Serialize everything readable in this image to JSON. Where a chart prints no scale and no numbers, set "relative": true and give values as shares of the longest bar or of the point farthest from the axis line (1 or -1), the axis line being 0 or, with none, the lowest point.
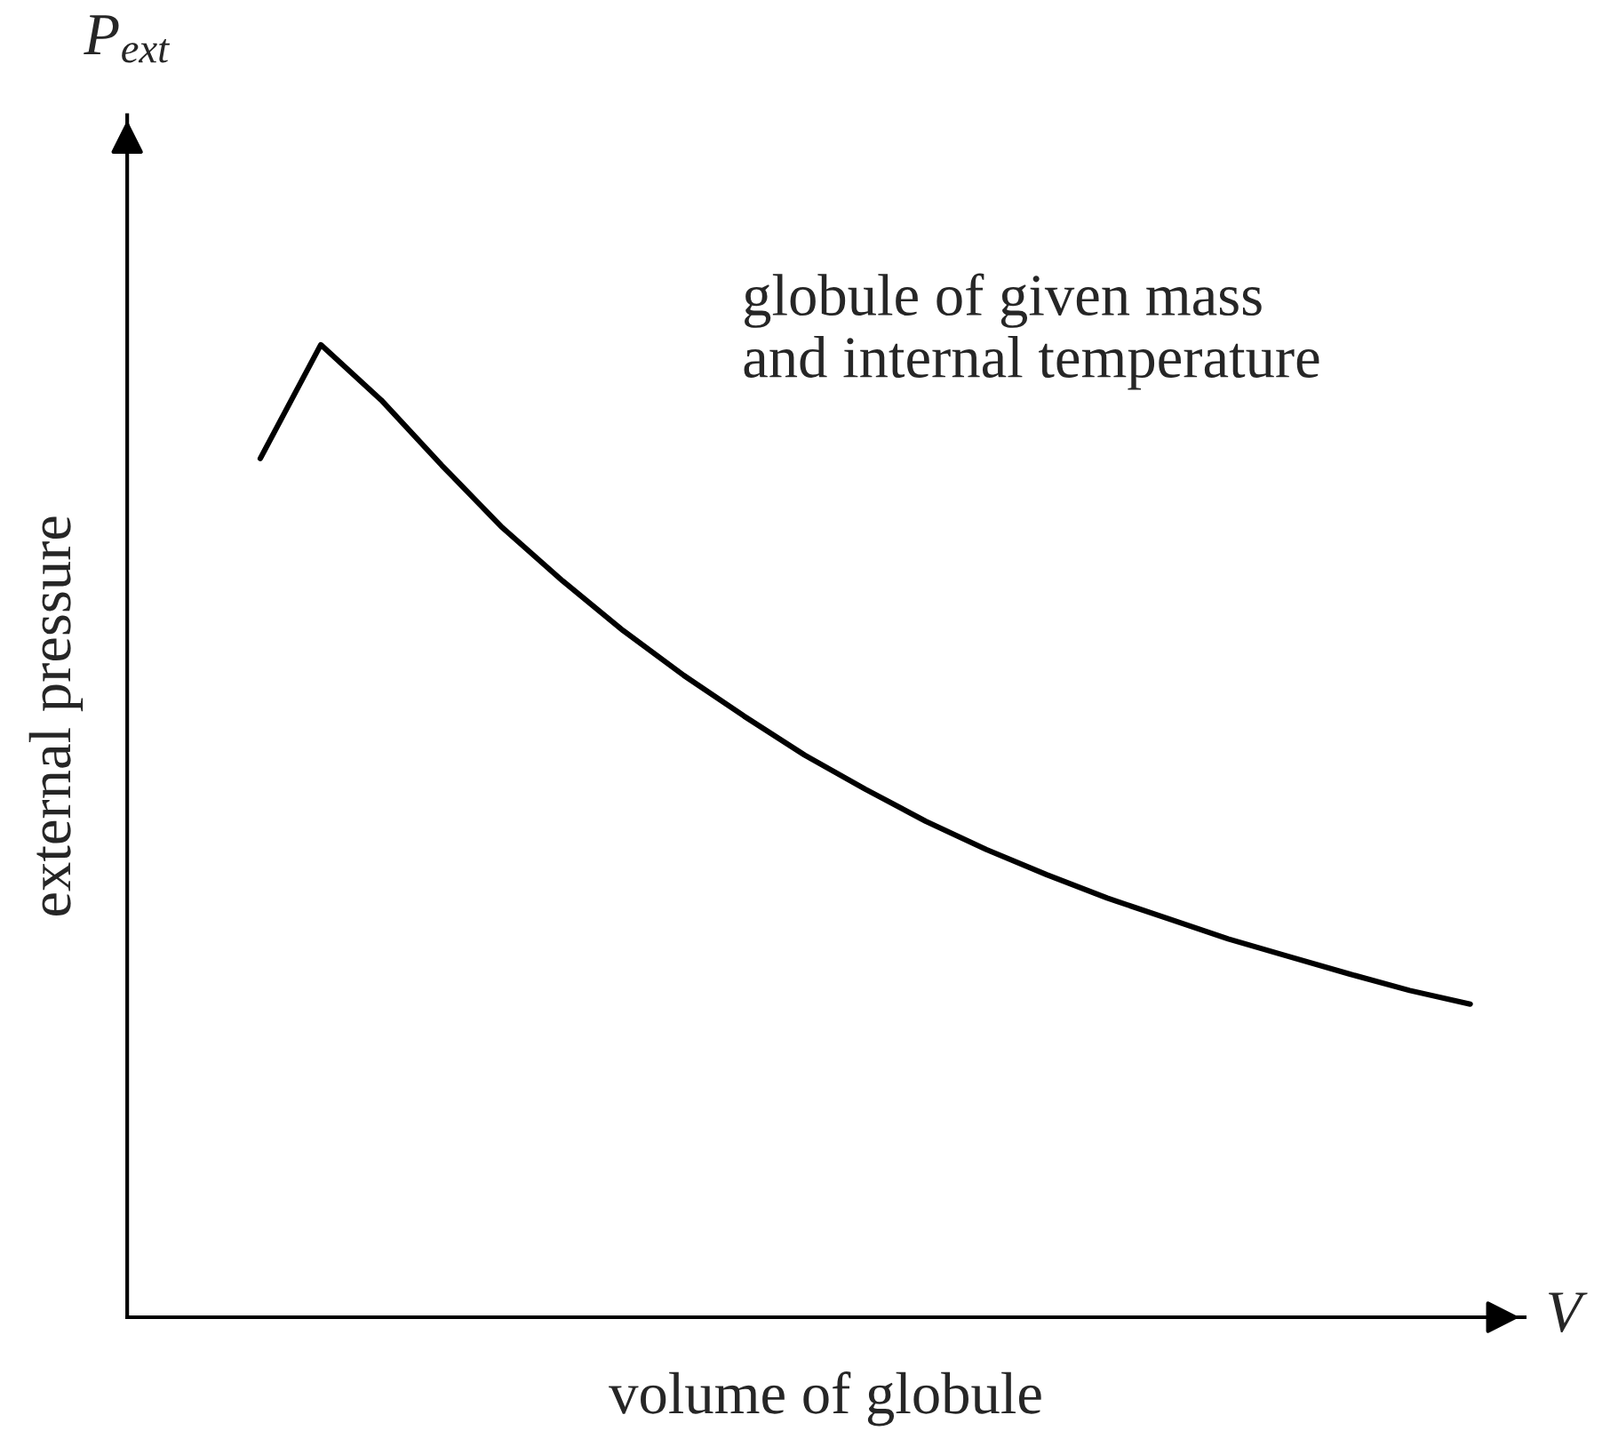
{
  "chart_data": {
    "type": "line",
    "relative": true,
    "xlabel": "volume of globule",
    "ylabel": "external pressure",
    "annotations": [
      "P$_{ext}$",
      "V",
      "globule of given mass\nand internal temperature"
    ],
    "categories": [
      null,
      null,
      null,
      null,
      null,
      null,
      null,
      null,
      null,
      null,
      null,
      null,
      null,
      null,
      null,
      null,
      null,
      null,
      null,
      null,
      null
    ],
    "series": [
      {
        "color": "#000000",
        "values": [
          0.883,
          1,
          0.943,
          0.876,
          0.812,
          0.757,
          0.706,
          0.66,
          0.618,
          0.578,
          0.543,
          0.51,
          0.481,
          0.455,
          0.431,
          0.41,
          0.389,
          0.371,
          0.353,
          0.336,
          0.322
        ]
      }
    ],
    "line_style": "solid"
  }
}
